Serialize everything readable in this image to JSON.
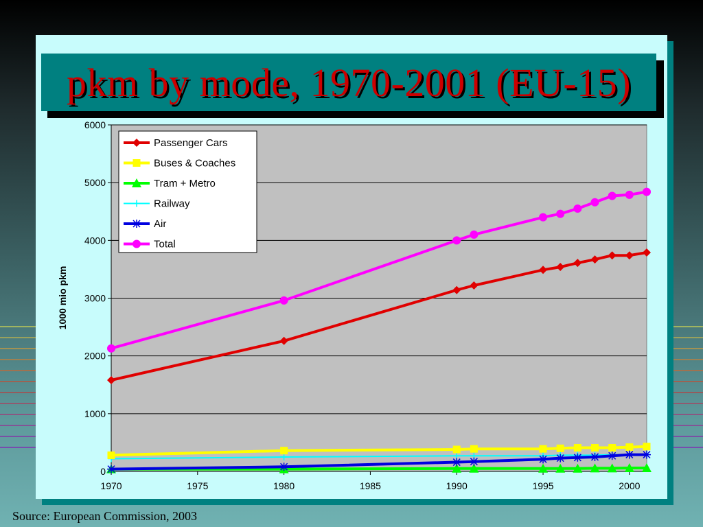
{
  "slide": {
    "title": "pkm by mode, 1970-2001 (EU-15)",
    "source": "Source:  European Commission, 2003"
  },
  "colors": {
    "background": "#3c6264",
    "panel": "#c8fcfc",
    "title_box": "#008080",
    "title_text": "#cc0000",
    "plot_area": "#c0c0c0"
  },
  "chart_data": {
    "type": "line",
    "title": "",
    "xlabel": "",
    "ylabel": "1000 mio pkm",
    "xlim": [
      1970,
      2001
    ],
    "ylim": [
      0,
      6000
    ],
    "x_ticks": [
      1970,
      1975,
      1980,
      1985,
      1990,
      1995,
      2000
    ],
    "y_ticks": [
      0,
      1000,
      2000,
      3000,
      4000,
      5000,
      6000
    ],
    "grid": "horizontal",
    "legend_position": "top-left",
    "x": [
      1970,
      1980,
      1990,
      1991,
      1995,
      1996,
      1997,
      1998,
      1999,
      2000,
      2001
    ],
    "series": [
      {
        "name": "Passenger Cars",
        "color": "#e00000",
        "marker": "diamond",
        "values": [
          1580,
          2260,
          3140,
          3220,
          3490,
          3540,
          3610,
          3670,
          3740,
          3740,
          3790
        ]
      },
      {
        "name": "Buses & Coaches",
        "color": "#ffff00",
        "marker": "square",
        "values": [
          280,
          360,
          380,
          390,
          390,
          400,
          410,
          410,
          410,
          420,
          430
        ]
      },
      {
        "name": "Tram + Metro",
        "color": "#00ff00",
        "marker": "triangle",
        "values": [
          40,
          40,
          50,
          50,
          50,
          50,
          50,
          55,
          55,
          60,
          60
        ]
      },
      {
        "name": "Railway",
        "color": "#00ffff",
        "marker": "plus",
        "values": [
          220,
          250,
          270,
          270,
          270,
          280,
          280,
          280,
          290,
          290,
          290
        ]
      },
      {
        "name": "Air",
        "color": "#0000e0",
        "marker": "star",
        "values": [
          40,
          80,
          160,
          170,
          210,
          230,
          240,
          250,
          270,
          290,
          290
        ]
      },
      {
        "name": "Total",
        "color": "#ff00ff",
        "marker": "circle",
        "values": [
          2130,
          2960,
          4000,
          4100,
          4400,
          4460,
          4550,
          4660,
          4770,
          4790,
          4840
        ]
      }
    ]
  }
}
